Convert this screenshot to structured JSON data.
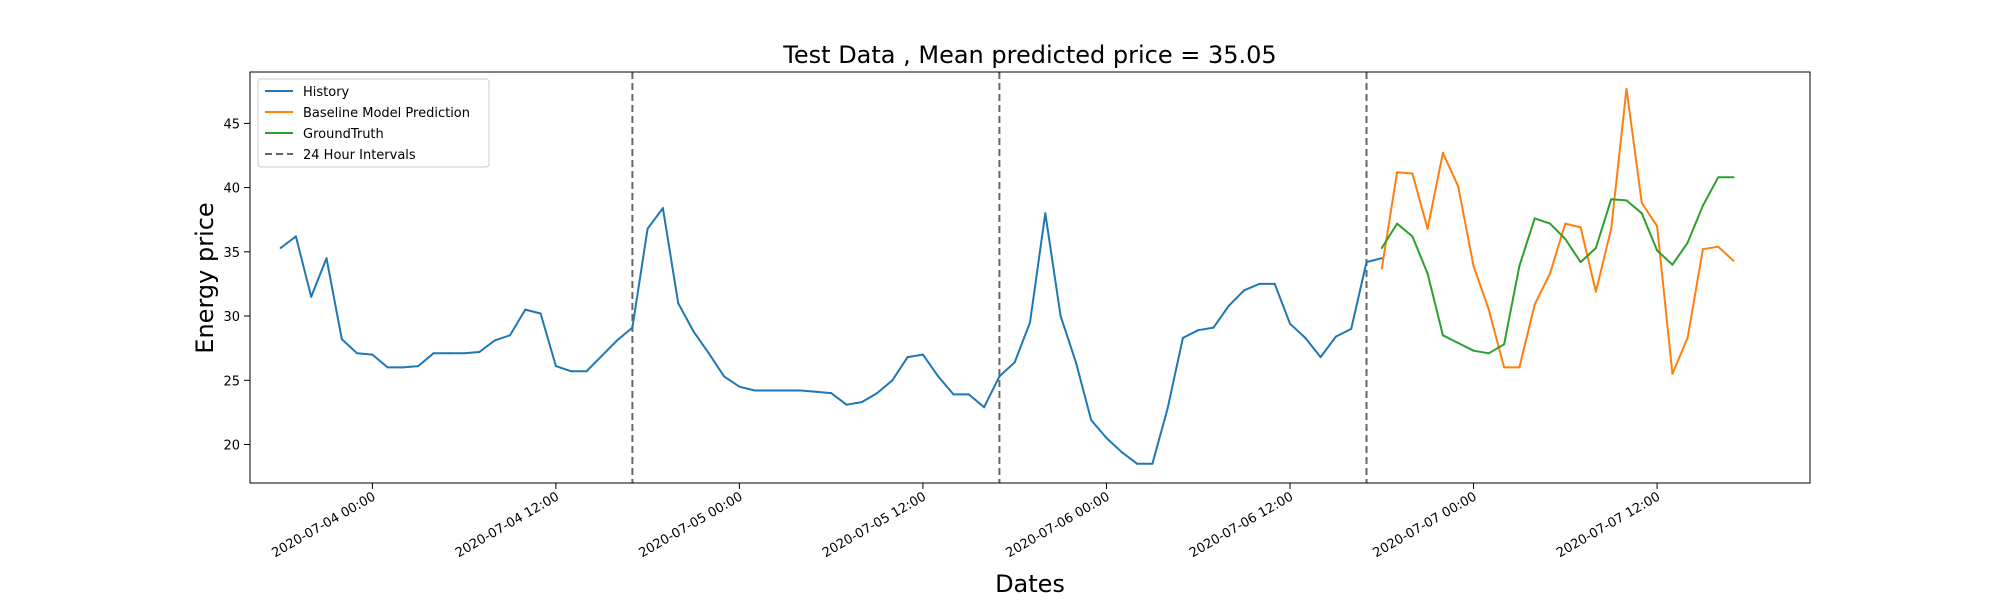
{
  "chart_data": {
    "type": "line",
    "title": "Test Data , Mean predicted price = 35.05",
    "xlabel": "Dates",
    "ylabel": "Energy price",
    "x_unit": "hour",
    "xlim": [
      "2020-07-03 16:00",
      "2020-07-07 22:00"
    ],
    "ylim": [
      17,
      49
    ],
    "yticks": [
      20,
      25,
      30,
      35,
      40,
      45
    ],
    "xticks": [
      "2020-07-04 00:00",
      "2020-07-04 12:00",
      "2020-07-05 00:00",
      "2020-07-05 12:00",
      "2020-07-06 00:00",
      "2020-07-06 12:00",
      "2020-07-07 00:00",
      "2020-07-07 12:00"
    ],
    "grid": false,
    "legend_position": "upper-left",
    "vlines": {
      "name": "24 Hour Intervals",
      "color": "#666666",
      "style": "dashed",
      "x": [
        "2020-07-04 17:00",
        "2020-07-05 17:00",
        "2020-07-06 17:00"
      ]
    },
    "series": [
      {
        "name": "History",
        "color": "#1f77b4",
        "x_start": "2020-07-03 18:00",
        "values": [
          35.3,
          36.2,
          31.5,
          34.5,
          28.2,
          27.1,
          27.0,
          26.0,
          26.0,
          26.1,
          27.1,
          27.1,
          27.1,
          27.2,
          28.1,
          28.5,
          30.5,
          30.2,
          26.1,
          25.7,
          25.7,
          26.9,
          28.1,
          29.1,
          36.8,
          38.4,
          31.0,
          28.8,
          27.1,
          25.3,
          24.5,
          24.2,
          24.2,
          24.2,
          24.2,
          24.1,
          24.0,
          23.1,
          23.3,
          24.0,
          25.0,
          26.8,
          27.0,
          25.3,
          23.9,
          23.9,
          22.9,
          25.3,
          26.4,
          29.5,
          38.0,
          30.0,
          26.4,
          21.9,
          20.5,
          19.4,
          18.5,
          18.5,
          22.8,
          28.3,
          28.9,
          29.1,
          30.8,
          32.0,
          32.5,
          32.5,
          29.4,
          28.3,
          26.8,
          28.4,
          29.0,
          34.2,
          34.5
        ]
      },
      {
        "name": "Baseline Model Prediction",
        "color": "#ff7f0e",
        "x_start": "2020-07-06 18:00",
        "values": [
          33.7,
          41.2,
          41.1,
          36.8,
          42.7,
          40.1,
          33.9,
          30.5,
          26.0,
          26.0,
          30.9,
          33.3,
          37.2,
          36.9,
          31.9,
          36.8,
          47.7,
          38.8,
          37.0,
          25.5,
          28.3,
          35.2,
          35.4,
          34.3
        ]
      },
      {
        "name": "GroundTruth",
        "color": "#2ca02c",
        "x_start": "2020-07-06 18:00",
        "values": [
          35.3,
          37.2,
          36.2,
          33.3,
          28.5,
          27.9,
          27.3,
          27.1,
          27.8,
          33.9,
          37.6,
          37.2,
          36.0,
          34.2,
          35.3,
          39.1,
          39.0,
          38.0,
          35.1,
          34.0,
          35.7,
          38.6,
          40.8,
          40.8
        ]
      }
    ]
  }
}
